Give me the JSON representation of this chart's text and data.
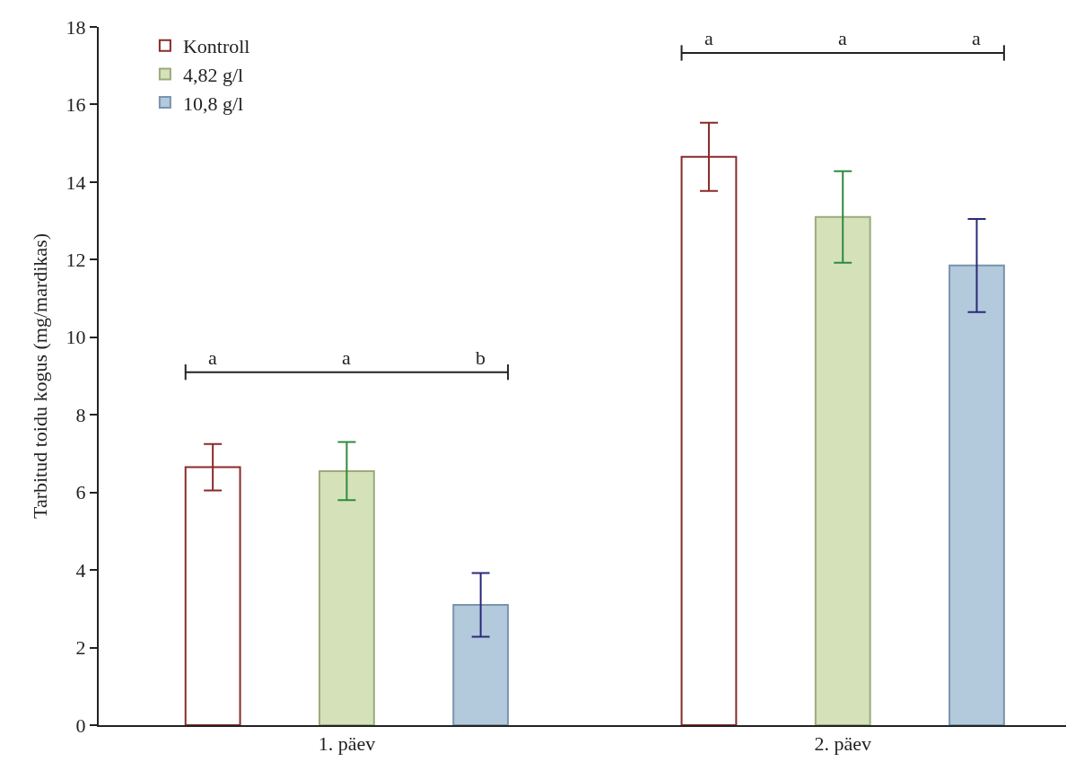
{
  "chart_data": {
    "type": "bar",
    "ylabel": "Tarbitud toidu kogus (mg/mardikas)",
    "categories": [
      "1. päev",
      "2. päev"
    ],
    "series": [
      {
        "name": "Kontroll",
        "color": "#ffffff",
        "values": [
          6.65,
          14.65
        ],
        "errors": [
          0.6,
          0.88
        ]
      },
      {
        "name": "4,82 g/l",
        "color": "#d5e2b9",
        "values": [
          6.55,
          13.1
        ],
        "errors": [
          0.75,
          1.18
        ]
      },
      {
        "name": "10,8 g/l",
        "color": "#b3c9dc",
        "values": [
          3.1,
          11.85
        ],
        "errors": [
          0.82,
          1.2
        ]
      }
    ],
    "annotations": [
      "a",
      "a",
      "b",
      "a",
      "a",
      "a"
    ],
    "ylim": [
      0,
      18
    ],
    "yticks": [
      0,
      2,
      4,
      6,
      8,
      10,
      12,
      14,
      16,
      18
    ],
    "legend": "top left"
  }
}
